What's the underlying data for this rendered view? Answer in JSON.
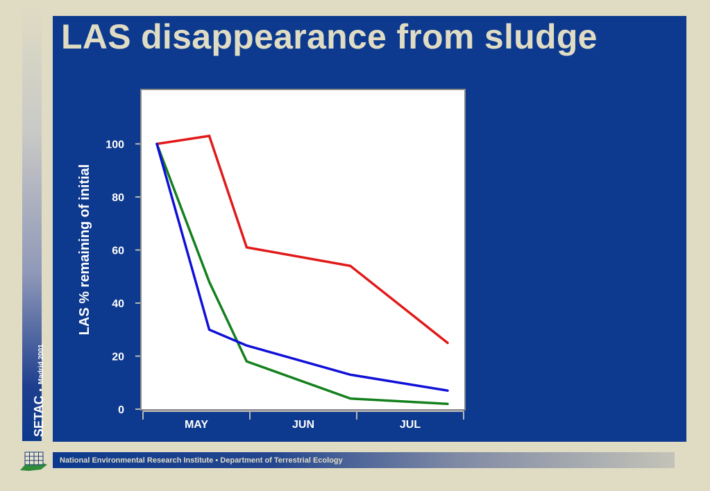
{
  "slide": {
    "title": "LAS disappearance from sludge",
    "sidebar_brand": "SETAC",
    "sidebar_separator": "▪",
    "sidebar_subtitle": "Madrid 2001",
    "footer_text": "National Environmental Research Institute ▪ Department of Terrestrial Ecology"
  },
  "colors": {
    "background": "#e0dcc4",
    "panel": "#0d3a8e",
    "title": "#e0dcc4",
    "plot_area": "#ffffff"
  },
  "chart_data": {
    "type": "line",
    "title": "",
    "xlabel": "",
    "ylabel": "LAS % remaining of initial",
    "categories": [
      "MAY",
      "JUN",
      "JUL"
    ],
    "xlim": [
      0,
      3
    ],
    "ylim": [
      0,
      120
    ],
    "yticks": [
      0,
      20,
      40,
      60,
      80,
      100
    ],
    "grid": false,
    "legend": "none",
    "series": [
      {
        "color": "#e11919",
        "points": [
          [
            0.13,
            100
          ],
          [
            0.62,
            103
          ],
          [
            0.97,
            61
          ],
          [
            1.94,
            54
          ],
          [
            2.85,
            25
          ]
        ]
      },
      {
        "color": "#14801e",
        "points": [
          [
            0.13,
            100
          ],
          [
            0.62,
            48
          ],
          [
            0.97,
            18
          ],
          [
            1.94,
            4
          ],
          [
            2.85,
            2
          ]
        ]
      },
      {
        "color": "#1010d8",
        "points": [
          [
            0.13,
            100
          ],
          [
            0.62,
            30
          ],
          [
            0.97,
            24
          ],
          [
            1.94,
            13
          ],
          [
            2.85,
            7
          ]
        ]
      }
    ]
  }
}
